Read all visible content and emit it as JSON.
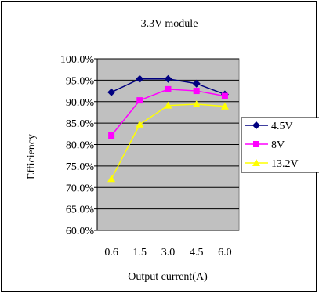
{
  "chart_data": {
    "type": "line",
    "title": "3.3V module",
    "xlabel": "Output current(A)",
    "ylabel": "Efficiency",
    "categories": [
      "0.6",
      "1.5",
      "3.0",
      "4.5",
      "6.0"
    ],
    "ylim": [
      0.6,
      1.0
    ],
    "ytick_labels": [
      "100.0%",
      "95.0%",
      "90.0%",
      "85.0%",
      "80.0%",
      "75.0%",
      "70.0%",
      "65.0%",
      "60.0%"
    ],
    "grid": true,
    "legend_position": "right",
    "plot_background": "#c0c0c0",
    "series": [
      {
        "name": "4.5V",
        "color": "#000080",
        "marker": "diamond",
        "values": [
          0.922,
          0.953,
          0.953,
          0.942,
          0.917
        ]
      },
      {
        "name": "8V",
        "color": "#ff00ff",
        "marker": "square",
        "values": [
          0.821,
          0.903,
          0.929,
          0.925,
          0.913
        ]
      },
      {
        "name": "13.2V",
        "color": "#ffff00",
        "marker": "triangle",
        "values": [
          0.72,
          0.847,
          0.891,
          0.894,
          0.889
        ]
      }
    ]
  }
}
